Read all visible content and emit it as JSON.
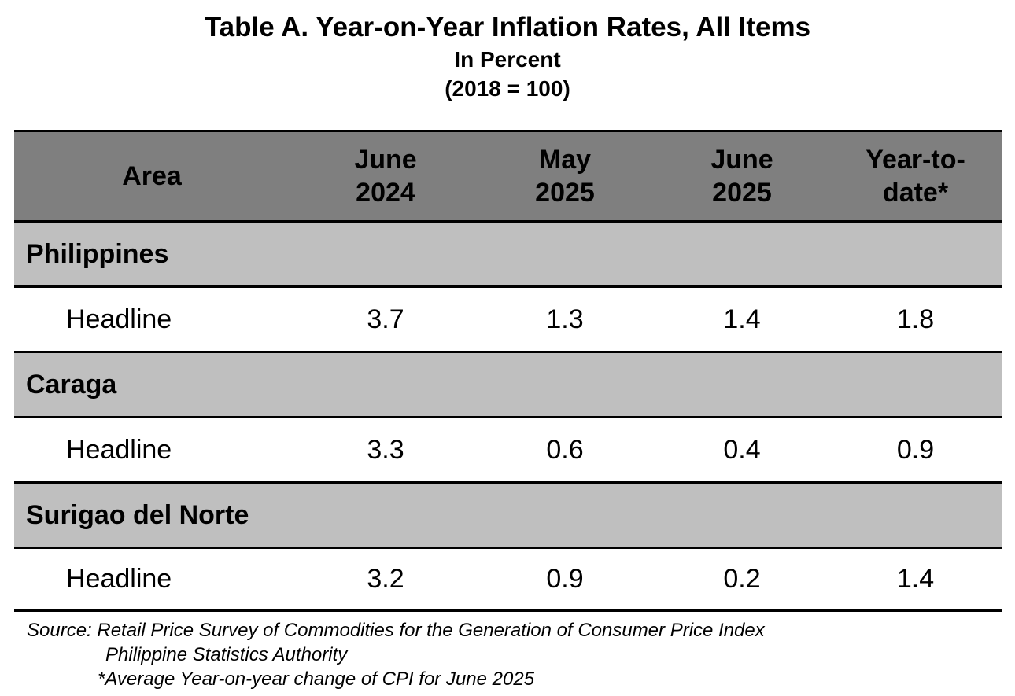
{
  "title": {
    "main": "Table A. Year-on-Year Inflation Rates, All Items",
    "unit": "In Percent",
    "base": "(2018 = 100)"
  },
  "table": {
    "headers": [
      [
        "Area"
      ],
      [
        "June",
        "2024"
      ],
      [
        "May",
        "2025"
      ],
      [
        "June",
        "2025"
      ],
      [
        "Year-to-",
        "date*"
      ]
    ],
    "groups": [
      {
        "area": "Philippines",
        "label": "Headline",
        "values": [
          "3.7",
          "1.3",
          "1.4",
          "1.8"
        ]
      },
      {
        "area": "Caraga",
        "label": "Headline",
        "values": [
          "3.3",
          "0.6",
          "0.4",
          "0.9"
        ]
      },
      {
        "area": "Surigao del Norte",
        "label": "Headline",
        "values": [
          "3.2",
          "0.9",
          "0.2",
          "1.4"
        ]
      }
    ]
  },
  "notes": {
    "source": "Source: Retail Price Survey of Commodities for the Generation of Consumer Price Index",
    "agency": "Philippine Statistics Authority",
    "footnote": "*Average Year-on-year change of CPI for June 2025"
  },
  "colors": {
    "header_bg": "#7f7f7f",
    "area_bg": "#bfbfbf",
    "data_bg": "#ffffff",
    "rule": "#000000"
  }
}
